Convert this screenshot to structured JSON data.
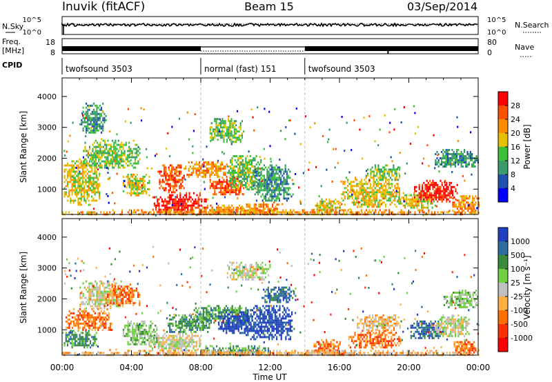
{
  "header": {
    "station": "Inuvik (fitACF)",
    "beam": "Beam 15",
    "date": "03/Sep/2014"
  },
  "top_panels": {
    "nsky": {
      "label": "N.Sky",
      "ticks": [
        "10^5",
        "10^0"
      ]
    },
    "nsearch": {
      "label": "N.Search",
      "ticks": [
        "10^5",
        "10^0"
      ]
    },
    "freq": {
      "label": "Freq.",
      "unit": "[MHz]",
      "ticks": [
        "18",
        "8"
      ]
    },
    "nave": {
      "label": "Nave",
      "ticks": [
        "80",
        "0"
      ]
    },
    "cpid": {
      "label": "CPID"
    }
  },
  "chart_data": [
    {
      "type": "table",
      "name": "cpid-timeline",
      "segments": [
        {
          "label": "twofsound 3503",
          "start_hr": 0,
          "end_hr": 8
        },
        {
          "label": "normal (fast) 151",
          "start_hr": 8,
          "end_hr": 14
        },
        {
          "label": "twofsound 3503",
          "start_hr": 14,
          "end_hr": 24
        }
      ]
    },
    {
      "type": "heatmap",
      "name": "power",
      "xlabel": "Time UT",
      "ylabel": "Slant Range [km]",
      "xlim": [
        0,
        24
      ],
      "ylim": [
        180,
        4600
      ],
      "x_ticks": [
        "00:00",
        "04:00",
        "08:00",
        "12:00",
        "16:00",
        "20:00",
        "00:00"
      ],
      "y_ticks": [
        1000,
        2000,
        3000,
        4000
      ],
      "colorbar": {
        "label": "Power [dB]",
        "ticks": [
          "28",
          "24",
          "20",
          "16",
          "12",
          "8",
          "4"
        ],
        "colors": [
          "#ff0000",
          "#ff5000",
          "#ff8c00",
          "#e6c000",
          "#3cc03c",
          "#3a9a6a",
          "#2050b0",
          "#0000ff"
        ]
      },
      "patches": [
        {
          "t0": 0.1,
          "t1": 2.2,
          "r0": 500,
          "r1": 2000,
          "v": 3
        },
        {
          "t0": 1.2,
          "t1": 4.5,
          "r0": 1700,
          "r1": 2600,
          "v": 4
        },
        {
          "t0": 3.5,
          "t1": 5.0,
          "r0": 800,
          "r1": 1500,
          "v": 3
        },
        {
          "t0": 5.2,
          "t1": 8.3,
          "r0": 200,
          "r1": 900,
          "v": 0
        },
        {
          "t0": 5.5,
          "t1": 7.0,
          "r0": 900,
          "r1": 1800,
          "v": 1
        },
        {
          "t0": 7.0,
          "t1": 9.5,
          "r0": 1400,
          "r1": 1900,
          "v": 2
        },
        {
          "t0": 8.5,
          "t1": 10.5,
          "r0": 800,
          "r1": 1400,
          "v": 1
        },
        {
          "t0": 8.0,
          "t1": 10.5,
          "r0": 200,
          "r1": 500,
          "v": 2
        },
        {
          "t0": 10.0,
          "t1": 12.5,
          "r0": 200,
          "r1": 600,
          "v": 2
        },
        {
          "t0": 9.5,
          "t1": 11.5,
          "r0": 1000,
          "r1": 2100,
          "v": 4
        },
        {
          "t0": 11.0,
          "t1": 13.3,
          "r0": 600,
          "r1": 1800,
          "v": 5
        },
        {
          "t0": 8.5,
          "t1": 10.5,
          "r0": 2500,
          "r1": 3300,
          "v": 4
        },
        {
          "t0": 14.5,
          "t1": 16.0,
          "r0": 250,
          "r1": 700,
          "v": 3
        },
        {
          "t0": 16.0,
          "t1": 19.5,
          "r0": 400,
          "r1": 1400,
          "v": 3
        },
        {
          "t0": 17.5,
          "t1": 19.5,
          "r0": 1300,
          "r1": 1800,
          "v": 4
        },
        {
          "t0": 19.3,
          "t1": 21.5,
          "r0": 400,
          "r1": 900,
          "v": 3
        },
        {
          "t0": 20.3,
          "t1": 22.8,
          "r0": 600,
          "r1": 1300,
          "v": 0
        },
        {
          "t0": 22.5,
          "t1": 24.0,
          "r0": 200,
          "r1": 800,
          "v": 2
        },
        {
          "t0": 21.5,
          "t1": 24.0,
          "r0": 1700,
          "r1": 2300,
          "v": 5
        },
        {
          "t0": 1.0,
          "t1": 2.5,
          "r0": 2800,
          "r1": 3800,
          "v": 5
        },
        {
          "t0": 0.0,
          "t1": 24.0,
          "r0": 180,
          "r1": 350,
          "v": 2
        }
      ]
    },
    {
      "type": "heatmap",
      "name": "velocity",
      "xlabel": "Time UT",
      "ylabel": "Slant Range [km]",
      "xlim": [
        0,
        24
      ],
      "ylim": [
        180,
        4600
      ],
      "x_ticks": [
        "00:00",
        "04:00",
        "08:00",
        "12:00",
        "16:00",
        "20:00",
        "00:00"
      ],
      "y_ticks": [
        1000,
        2000,
        3000,
        4000
      ],
      "colorbar": {
        "label": "Velocity [m s⁻¹]",
        "ticks": [
          "1000",
          "500",
          "100",
          "25",
          "-25",
          "-100",
          "-500",
          "-1000"
        ],
        "colors": [
          "#2040c0",
          "#2e6e9e",
          "#3a8c3a",
          "#70d040",
          "#c0c0c0",
          "#ffb040",
          "#ff7000",
          "#ff3000",
          "#ff0000"
        ]
      },
      "patches": [
        {
          "t0": 0.1,
          "t1": 2.0,
          "r0": 400,
          "r1": 1000,
          "v": 2
        },
        {
          "t0": 0.2,
          "t1": 3.0,
          "r0": 1000,
          "r1": 1700,
          "v": 6
        },
        {
          "t0": 1.0,
          "t1": 3.5,
          "r0": 1700,
          "r1": 2600,
          "v": 4
        },
        {
          "t0": 2.5,
          "t1": 4.5,
          "r0": 1800,
          "r1": 2500,
          "v": 6
        },
        {
          "t0": 3.5,
          "t1": 5.5,
          "r0": 500,
          "r1": 1300,
          "v": 3
        },
        {
          "t0": 5.0,
          "t1": 8.0,
          "r0": 300,
          "r1": 900,
          "v": 4
        },
        {
          "t0": 6.0,
          "t1": 8.5,
          "r0": 900,
          "r1": 1500,
          "v": 2
        },
        {
          "t0": 7.5,
          "t1": 11.0,
          "r0": 1200,
          "r1": 1800,
          "v": 2
        },
        {
          "t0": 9.0,
          "t1": 11.0,
          "r0": 900,
          "r1": 1600,
          "v": 0
        },
        {
          "t0": 8.0,
          "t1": 12.0,
          "r0": 200,
          "r1": 500,
          "v": 2
        },
        {
          "t0": 10.5,
          "t1": 13.3,
          "r0": 700,
          "r1": 1800,
          "v": 0
        },
        {
          "t0": 11.5,
          "t1": 13.5,
          "r0": 1900,
          "r1": 2400,
          "v": 1
        },
        {
          "t0": 9.5,
          "t1": 12.0,
          "r0": 2600,
          "r1": 3200,
          "v": 4
        },
        {
          "t0": 14.5,
          "t1": 16.0,
          "r0": 250,
          "r1": 700,
          "v": 6
        },
        {
          "t0": 16.5,
          "t1": 19.5,
          "r0": 400,
          "r1": 1000,
          "v": 6
        },
        {
          "t0": 17.0,
          "t1": 19.5,
          "r0": 1000,
          "r1": 1500,
          "v": 5
        },
        {
          "t0": 20.0,
          "t1": 22.0,
          "r0": 700,
          "r1": 1300,
          "v": 1
        },
        {
          "t0": 21.5,
          "t1": 23.5,
          "r0": 800,
          "r1": 1500,
          "v": 4
        },
        {
          "t0": 22.5,
          "t1": 24.0,
          "r0": 200,
          "r1": 700,
          "v": 6
        },
        {
          "t0": 22.0,
          "t1": 24.0,
          "r0": 1700,
          "r1": 2300,
          "v": 3
        },
        {
          "t0": 0.0,
          "t1": 24.0,
          "r0": 180,
          "r1": 350,
          "v": 5
        }
      ]
    }
  ]
}
